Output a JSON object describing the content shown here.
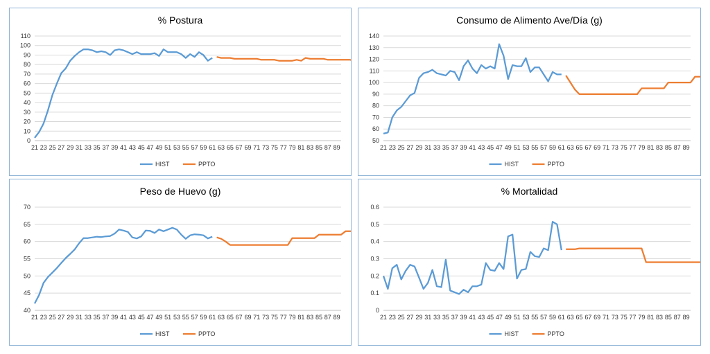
{
  "chart_data": [
    {
      "type": "line",
      "title": "% Postura",
      "x_start": 21,
      "x_end": 90,
      "xtick_labels": [
        21,
        23,
        25,
        27,
        29,
        31,
        33,
        35,
        37,
        39,
        41,
        43,
        45,
        47,
        49,
        51,
        53,
        55,
        57,
        59,
        61,
        63,
        65,
        67,
        69,
        71,
        73,
        75,
        77,
        79,
        81,
        83,
        85,
        87,
        89
      ],
      "ylim": [
        0,
        110
      ],
      "yticks": [
        0,
        10,
        20,
        30,
        40,
        50,
        60,
        70,
        80,
        90,
        100,
        110
      ],
      "grid": true,
      "legend": "bottom",
      "series": [
        {
          "name": "HIST",
          "color": "#5b9bd5",
          "x_start": 21,
          "values": [
            3,
            9,
            18,
            32,
            48,
            60,
            71,
            76,
            84,
            89,
            93,
            96,
            96,
            95,
            93,
            94,
            93,
            90,
            95,
            96,
            95,
            93,
            91,
            93,
            91,
            91,
            91,
            92,
            89,
            96,
            93,
            93,
            93,
            91,
            87,
            91,
            88,
            93,
            90,
            84,
            87
          ]
        },
        {
          "name": "PPTO",
          "color": "#ed7d31",
          "x_start": 62,
          "values": [
            88,
            87,
            87,
            87,
            86,
            86,
            86,
            86,
            86,
            86,
            85,
            85,
            85,
            85,
            84,
            84,
            84,
            84,
            85,
            84,
            87,
            86,
            86,
            86,
            86,
            85,
            85,
            85,
            85,
            85,
            85,
            84,
            84
          ]
        }
      ]
    },
    {
      "type": "line",
      "title": "Consumo de Alimento Ave/Día (g)",
      "x_start": 21,
      "x_end": 90,
      "xtick_labels": [
        21,
        23,
        25,
        27,
        29,
        31,
        33,
        35,
        37,
        39,
        41,
        43,
        45,
        47,
        49,
        51,
        53,
        55,
        57,
        59,
        61,
        63,
        65,
        67,
        69,
        71,
        73,
        75,
        77,
        79,
        81,
        83,
        85,
        87,
        89
      ],
      "ylim": [
        50,
        140
      ],
      "yticks": [
        50,
        60,
        70,
        80,
        90,
        100,
        110,
        120,
        130,
        140
      ],
      "grid": true,
      "legend": "bottom",
      "series": [
        {
          "name": "HIST",
          "color": "#5b9bd5",
          "x_start": 21,
          "values": [
            56,
            57,
            70,
            76,
            79,
            84,
            89,
            91,
            104,
            108,
            109,
            111,
            108,
            107,
            106,
            110,
            109,
            102,
            114,
            119,
            112,
            108,
            115,
            112,
            114,
            112,
            133,
            123,
            103,
            115,
            114,
            114,
            121,
            109,
            113,
            113,
            107,
            101,
            109,
            107,
            107
          ]
        },
        {
          "name": "PPTO",
          "color": "#ed7d31",
          "x_start": 62,
          "values": [
            106,
            100,
            94,
            90,
            90,
            90,
            90,
            90,
            90,
            90,
            90,
            90,
            90,
            90,
            90,
            90,
            90,
            95,
            95,
            95,
            95,
            95,
            95,
            100,
            100,
            100,
            100,
            100,
            100,
            105,
            105,
            105,
            105,
            105,
            105,
            105,
            105
          ]
        }
      ]
    },
    {
      "type": "line",
      "title": "Peso de Huevo (g)",
      "x_start": 21,
      "x_end": 90,
      "xtick_labels": [
        21,
        23,
        25,
        27,
        29,
        31,
        33,
        35,
        37,
        39,
        41,
        43,
        45,
        47,
        49,
        51,
        53,
        55,
        57,
        59,
        61,
        63,
        65,
        67,
        69,
        71,
        73,
        75,
        77,
        79,
        81,
        83,
        85,
        87,
        89
      ],
      "ylim": [
        40,
        70
      ],
      "yticks": [
        40,
        45,
        50,
        55,
        60,
        65,
        70
      ],
      "grid": true,
      "legend": "bottom",
      "series": [
        {
          "name": "HIST",
          "color": "#5b9bd5",
          "x_start": 21,
          "values": [
            42,
            44.5,
            48,
            49.7,
            51,
            52.3,
            53.8,
            55.2,
            56.4,
            57.7,
            59.5,
            61,
            61,
            61.2,
            61.4,
            61.3,
            61.5,
            61.6,
            62.3,
            63.5,
            63.2,
            62.8,
            61.2,
            60.9,
            61.5,
            63.2,
            63.1,
            62.5,
            63.5,
            63,
            63.5,
            64,
            63.5,
            62,
            60.8,
            61.8,
            62.1,
            62,
            61.8,
            60.9,
            61.4
          ]
        },
        {
          "name": "PPTO",
          "color": "#ed7d31",
          "x_start": 62,
          "values": [
            61.2,
            60.8,
            60,
            59,
            59,
            59,
            59,
            59,
            59,
            59,
            59,
            59,
            59,
            59,
            59,
            59,
            59,
            61,
            61,
            61,
            61,
            61,
            61,
            62,
            62,
            62,
            62,
            62,
            62,
            63,
            63,
            63,
            63,
            63,
            63,
            63,
            63
          ]
        }
      ]
    },
    {
      "type": "line",
      "title": "% Mortalidad",
      "x_start": 21,
      "x_end": 90,
      "xtick_labels": [
        21,
        23,
        25,
        27,
        29,
        31,
        33,
        35,
        37,
        39,
        41,
        43,
        45,
        47,
        49,
        51,
        53,
        55,
        57,
        59,
        61,
        63,
        65,
        67,
        69,
        71,
        73,
        75,
        77,
        79,
        81,
        83,
        85,
        87,
        89
      ],
      "ylim": [
        0,
        0.6
      ],
      "yticks": [
        0,
        0.1,
        0.2,
        0.3,
        0.4,
        0.5,
        0.6
      ],
      "grid": true,
      "legend": "bottom",
      "series": [
        {
          "name": "HIST",
          "color": "#5b9bd5",
          "x_start": 21,
          "values": [
            0.2,
            0.125,
            0.245,
            0.265,
            0.18,
            0.23,
            0.265,
            0.255,
            0.19,
            0.125,
            0.16,
            0.235,
            0.14,
            0.135,
            0.295,
            0.115,
            0.105,
            0.095,
            0.12,
            0.105,
            0.14,
            0.14,
            0.15,
            0.275,
            0.235,
            0.23,
            0.275,
            0.24,
            0.43,
            0.44,
            0.185,
            0.235,
            0.24,
            0.34,
            0.315,
            0.31,
            0.36,
            0.35,
            0.515,
            0.5,
            0.35
          ]
        },
        {
          "name": "PPTO",
          "color": "#ed7d31",
          "x_start": 62,
          "values": [
            0.355,
            0.355,
            0.355,
            0.36,
            0.36,
            0.36,
            0.36,
            0.36,
            0.36,
            0.36,
            0.36,
            0.36,
            0.36,
            0.36,
            0.36,
            0.36,
            0.36,
            0.36,
            0.28,
            0.28,
            0.28,
            0.28,
            0.28,
            0.28,
            0.28,
            0.28,
            0.28,
            0.28,
            0.28,
            0.28,
            0.28,
            0.28,
            0.28
          ]
        }
      ]
    }
  ]
}
